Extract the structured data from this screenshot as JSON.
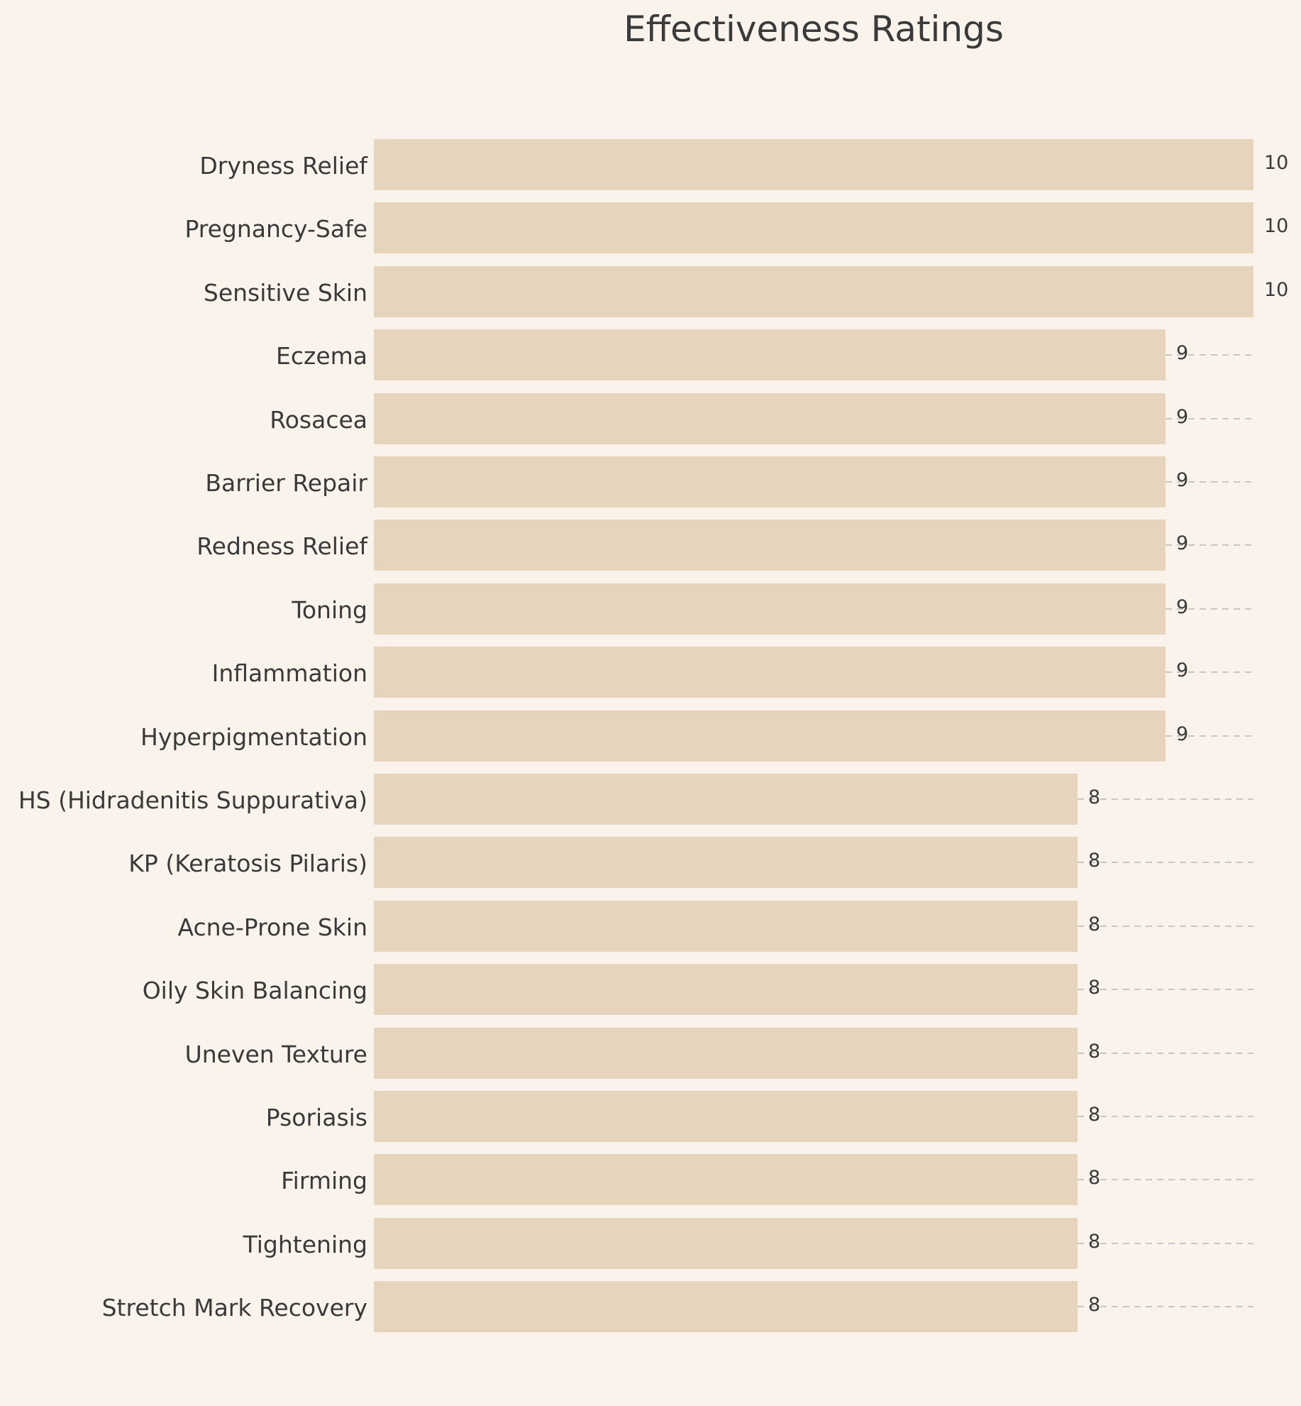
{
  "title": "Effectiveness Ratings",
  "colors": {
    "background": "#faf3eb",
    "bar": "#e7d4bc",
    "text": "#3a3a3a",
    "gridline": "#c6c6c6"
  },
  "chart_data": {
    "type": "bar",
    "orientation": "horizontal",
    "title": "Effectiveness Ratings",
    "categories": [
      "Dryness Relief",
      "Pregnancy-Safe",
      "Sensitive Skin",
      "Eczema",
      "Rosacea",
      "Barrier Repair",
      "Redness Relief",
      "Toning",
      "Inflammation",
      "Hyperpigmentation",
      "HS (Hidradenitis Suppurativa)",
      "KP (Keratosis Pilaris)",
      "Acne-Prone Skin",
      "Oily Skin Balancing",
      "Uneven Texture",
      "Psoriasis",
      "Firming",
      "Tightening",
      "Stretch Mark Recovery"
    ],
    "values": [
      10,
      10,
      10,
      9,
      9,
      9,
      9,
      9,
      9,
      9,
      8,
      8,
      8,
      8,
      8,
      8,
      8,
      8,
      8
    ],
    "xlim": [
      0,
      10
    ],
    "value_labels": true,
    "grid": "dashed horizontal from bar end to max",
    "legend": "none"
  }
}
